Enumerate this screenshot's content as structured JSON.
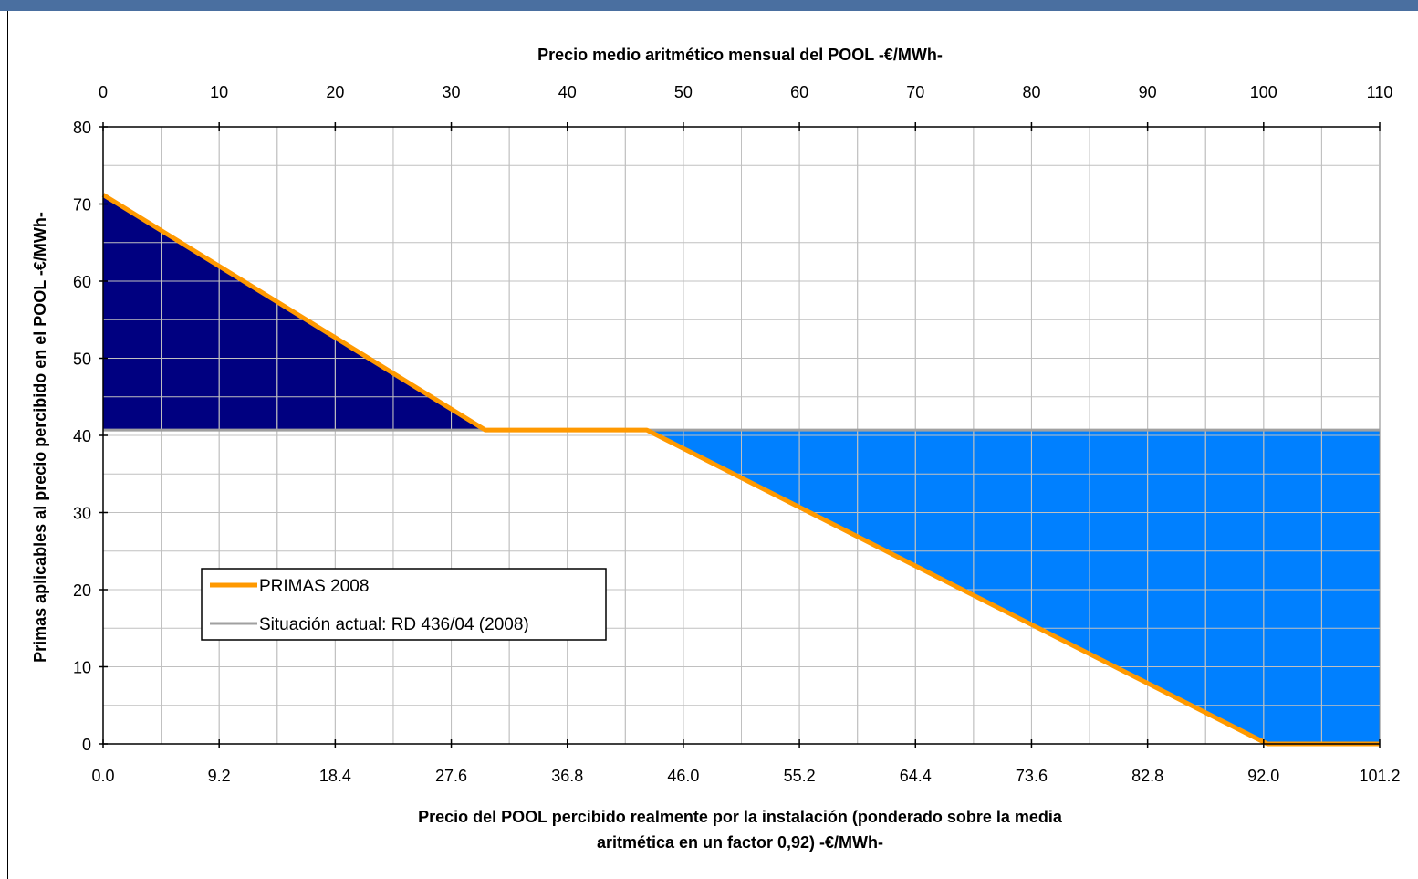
{
  "chart_data": {
    "type": "area",
    "top_axis": {
      "title": "Precio medio aritmético mensual del POOL  -€/MWh-",
      "range": [
        0,
        110
      ],
      "ticks": [
        0,
        10,
        20,
        30,
        40,
        50,
        60,
        70,
        80,
        90,
        100,
        110
      ],
      "tick_labels": [
        "0",
        "10",
        "20",
        "30",
        "40",
        "50",
        "60",
        "70",
        "80",
        "90",
        "100",
        "110"
      ]
    },
    "x_axis": {
      "title_line1": "Precio del POOL percibido realmente por la instalación (ponderado sobre la media",
      "title_line2": "aritmética en un factor 0,92)  -€/MWh-",
      "range": [
        0,
        101.2
      ],
      "ticks": [
        0,
        9.2,
        18.4,
        27.6,
        36.8,
        46,
        55.2,
        64.4,
        73.6,
        82.8,
        92,
        101.2
      ],
      "tick_labels": [
        "0.0",
        "9.2",
        "18.4",
        "27.6",
        "36.8",
        "46.0",
        "55.2",
        "64.4",
        "73.6",
        "82.8",
        "92.0",
        "101.2"
      ]
    },
    "y_axis": {
      "title": "Primas aplicables al precio percibido en el POOL -€/MWh-",
      "range": [
        0,
        80
      ],
      "ticks": [
        0,
        10,
        20,
        30,
        40,
        50,
        60,
        70,
        80
      ],
      "tick_labels": [
        "0",
        "10",
        "20",
        "30",
        "40",
        "50",
        "60",
        "70",
        "80"
      ]
    },
    "grid": true,
    "legend_position": "lower-left",
    "series": [
      {
        "name": "PRIMAS 2008",
        "color": "#ff9900",
        "x": [
          0,
          30.3,
          43.1,
          92.3,
          95.0,
          101.2
        ],
        "y": [
          71.2,
          40.7,
          40.7,
          0,
          0,
          0
        ]
      },
      {
        "name": "Situación actual: RD 436/04 (2008)",
        "color": "#a0a0a0",
        "x": [
          0,
          101.2
        ],
        "y": [
          40.7,
          40.7
        ]
      }
    ],
    "fills": {
      "above_reference_color": "#000080",
      "below_reference_color": "#0080ff"
    }
  }
}
